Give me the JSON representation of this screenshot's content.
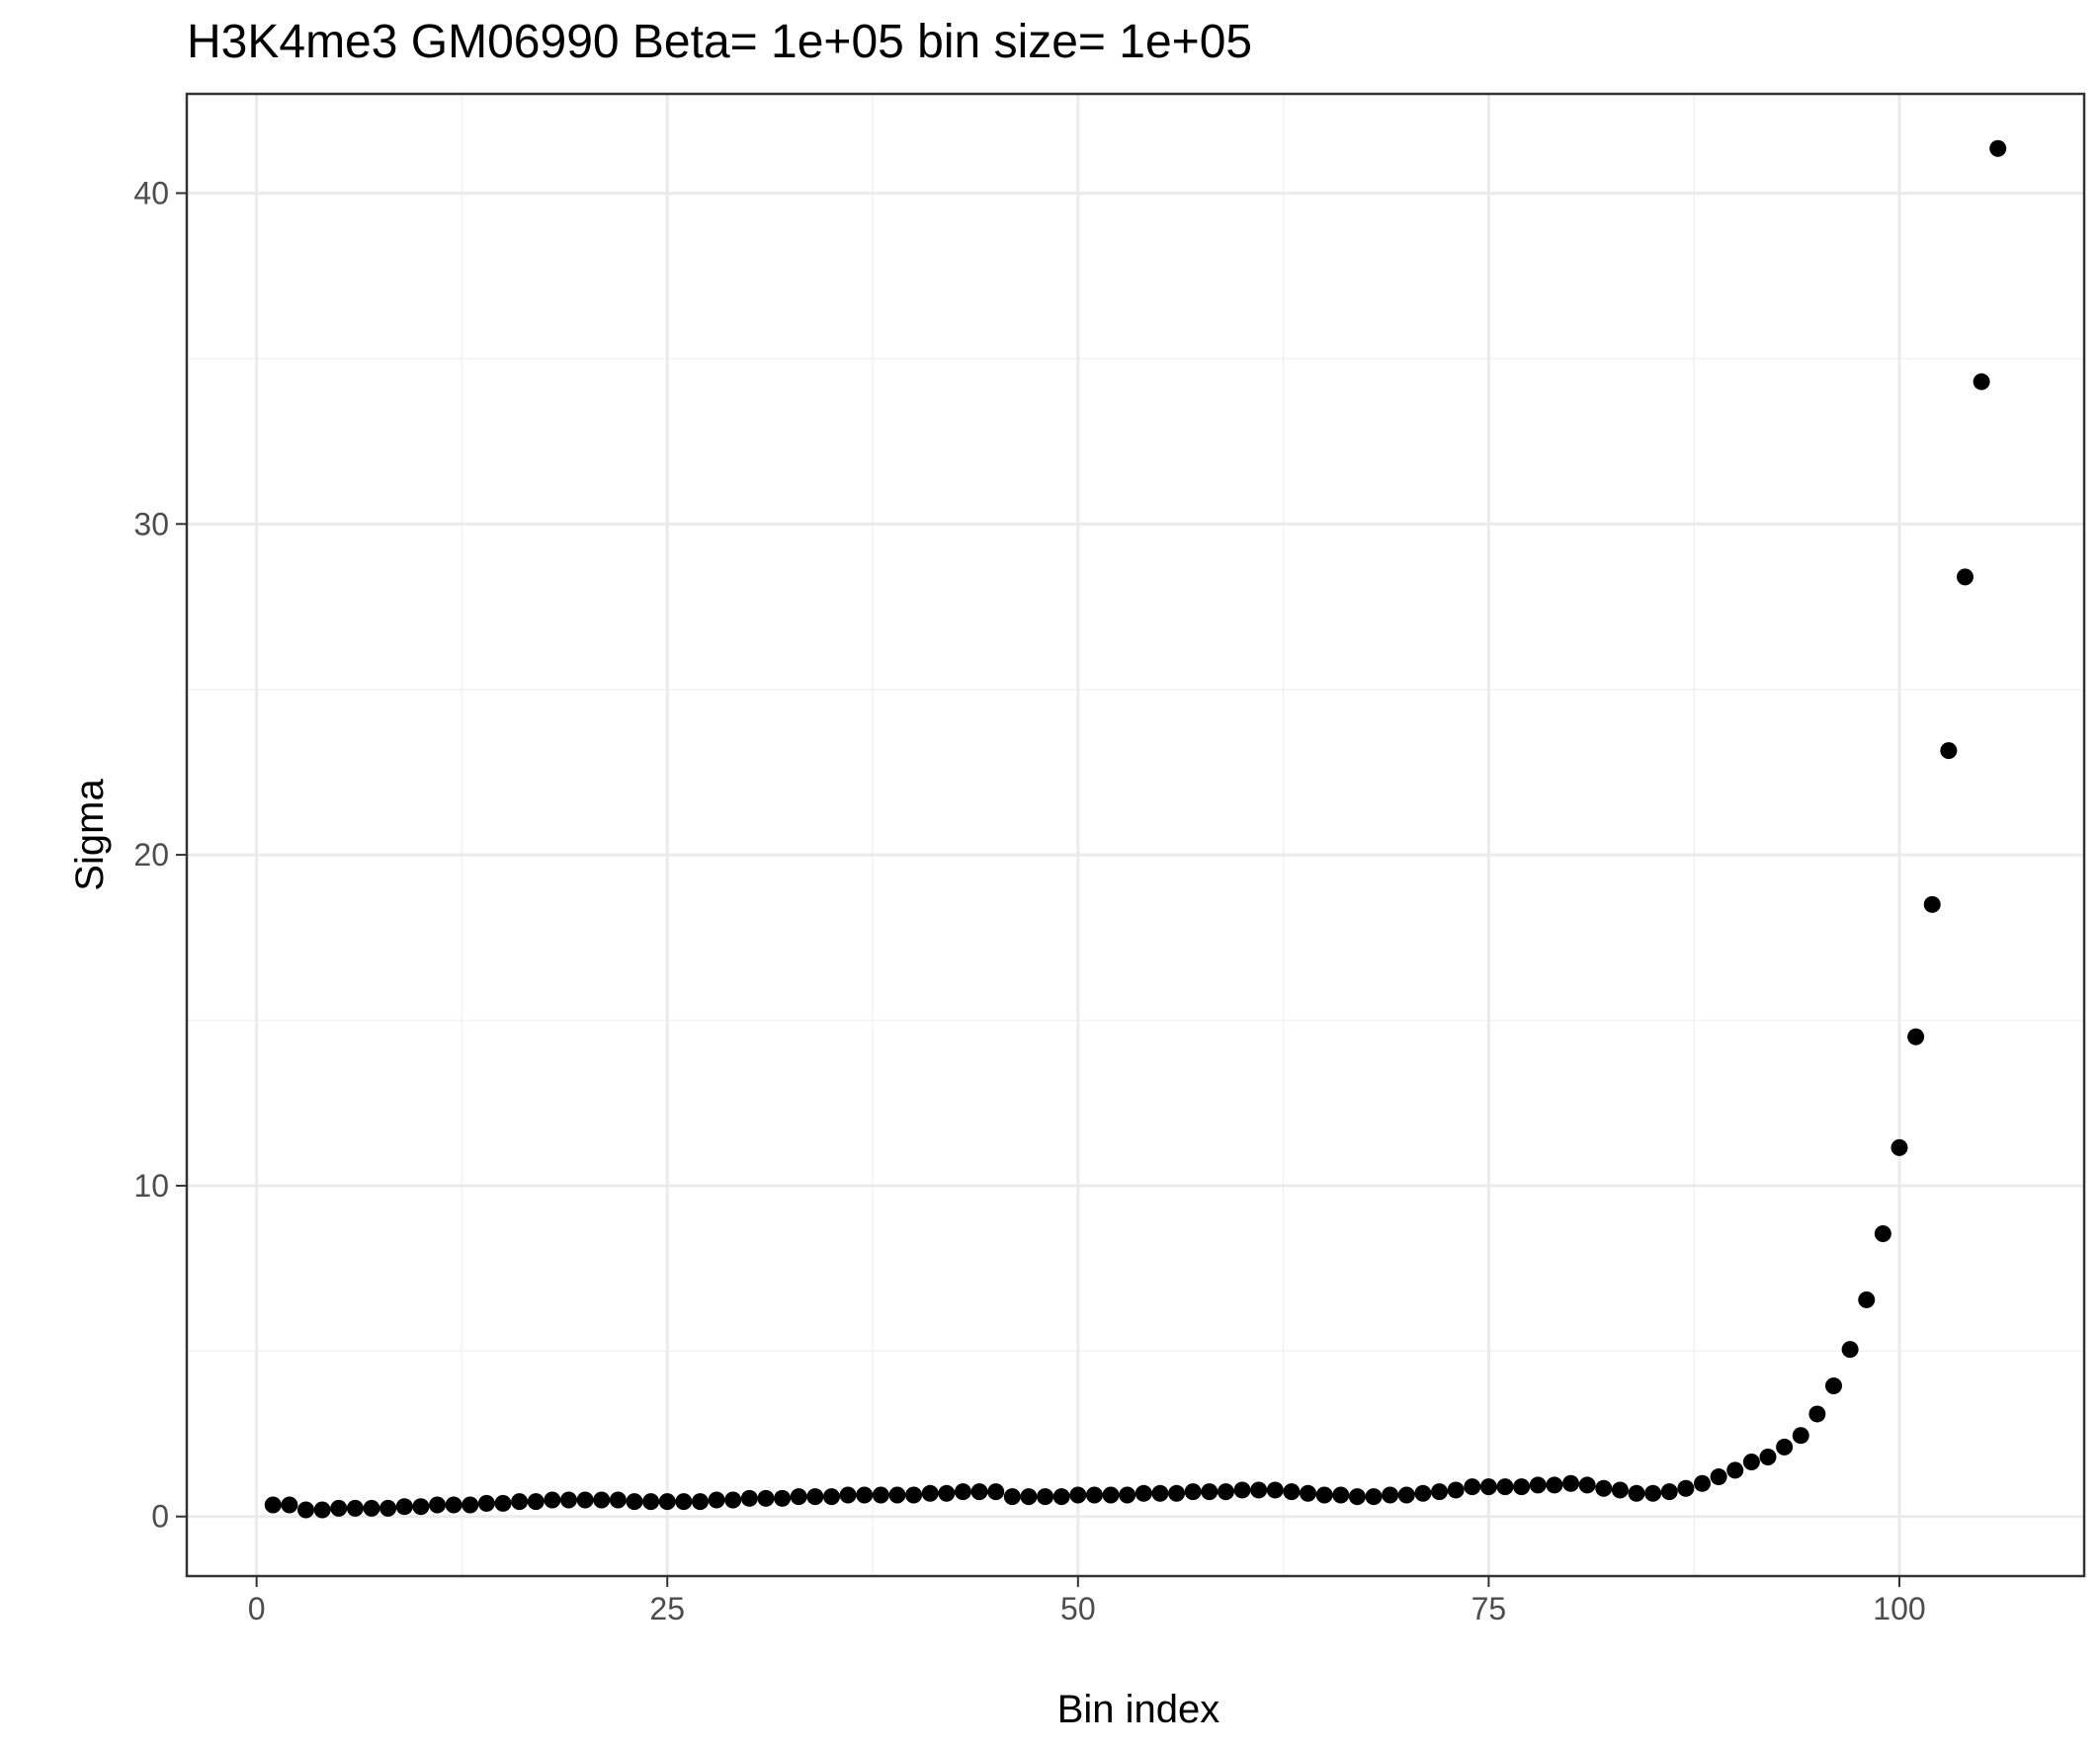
{
  "chart_data": {
    "type": "scatter",
    "title": "H3K4me3 GM06990  Beta=  1e+05  bin size=  1e+05",
    "xlabel": "Bin index",
    "ylabel": "Sigma",
    "xlim": [
      -4.25,
      111.25
    ],
    "ylim": [
      -1.8,
      43.0
    ],
    "x_ticks": [
      0,
      25,
      50,
      75,
      100
    ],
    "x_tick_labels": [
      "0",
      "25",
      "50",
      "75",
      "100"
    ],
    "y_ticks": [
      0,
      10,
      20,
      30,
      40
    ],
    "y_tick_labels": [
      "0",
      "10",
      "20",
      "30",
      "40"
    ],
    "x_minor": [
      12.5,
      37.5,
      62.5,
      87.5
    ],
    "y_minor": [
      5,
      15,
      25,
      35
    ],
    "grid": true,
    "point_color": "#000000",
    "x": [
      1,
      2,
      3,
      4,
      5,
      6,
      7,
      8,
      9,
      10,
      11,
      12,
      13,
      14,
      15,
      16,
      17,
      18,
      19,
      20,
      21,
      22,
      23,
      24,
      25,
      26,
      27,
      28,
      29,
      30,
      31,
      32,
      33,
      34,
      35,
      36,
      37,
      38,
      39,
      40,
      41,
      42,
      43,
      44,
      45,
      46,
      47,
      48,
      49,
      50,
      51,
      52,
      53,
      54,
      55,
      56,
      57,
      58,
      59,
      60,
      61,
      62,
      63,
      64,
      65,
      66,
      67,
      68,
      69,
      70,
      71,
      72,
      73,
      74,
      75,
      76,
      77,
      78,
      79,
      80,
      81,
      82,
      83,
      84,
      85,
      86,
      87,
      88,
      89,
      90,
      91,
      92,
      93,
      94,
      95,
      96,
      97,
      98,
      99,
      100,
      101,
      102,
      103,
      104,
      105,
      106
    ],
    "y": [
      0.35,
      0.35,
      0.2,
      0.2,
      0.25,
      0.25,
      0.25,
      0.25,
      0.3,
      0.3,
      0.35,
      0.35,
      0.35,
      0.4,
      0.4,
      0.45,
      0.45,
      0.5,
      0.5,
      0.5,
      0.5,
      0.5,
      0.45,
      0.45,
      0.45,
      0.45,
      0.45,
      0.5,
      0.5,
      0.55,
      0.55,
      0.55,
      0.6,
      0.6,
      0.6,
      0.65,
      0.65,
      0.65,
      0.65,
      0.65,
      0.7,
      0.7,
      0.75,
      0.75,
      0.75,
      0.6,
      0.6,
      0.6,
      0.6,
      0.65,
      0.65,
      0.65,
      0.65,
      0.7,
      0.7,
      0.7,
      0.75,
      0.75,
      0.75,
      0.8,
      0.8,
      0.8,
      0.75,
      0.7,
      0.65,
      0.65,
      0.6,
      0.6,
      0.65,
      0.65,
      0.7,
      0.75,
      0.8,
      0.9,
      0.9,
      0.9,
      0.9,
      0.95,
      0.95,
      1.0,
      0.95,
      0.85,
      0.8,
      0.7,
      0.7,
      0.75,
      0.85,
      1.0,
      1.2,
      1.4,
      1.65,
      1.8,
      2.1,
      2.45,
      3.1,
      3.95,
      5.05,
      6.55,
      8.55,
      11.15,
      14.5,
      18.5,
      23.15,
      28.4,
      34.3,
      41.35
    ]
  }
}
